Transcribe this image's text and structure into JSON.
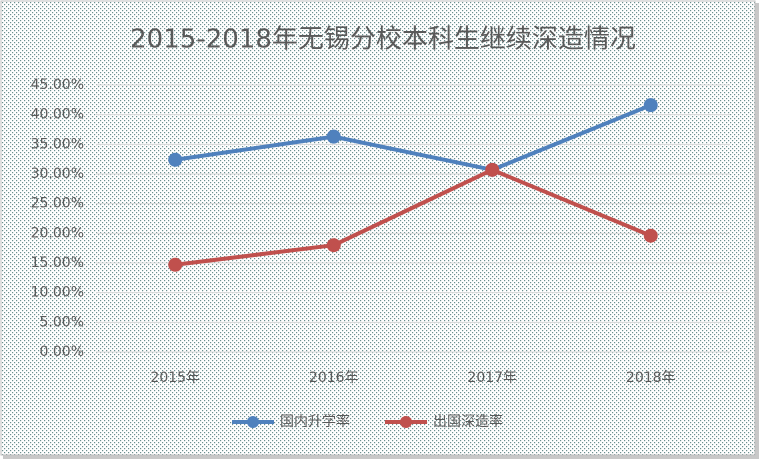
{
  "chart_data": {
    "type": "line",
    "title": "2015-2018年无锡分校本科生继续深造情况",
    "categories": [
      "2015年",
      "2016年",
      "2017年",
      "2018年"
    ],
    "series": [
      {
        "name": "国内升学率",
        "color": "#4f81bd",
        "values": [
          32.4,
          36.3,
          30.7,
          41.6
        ]
      },
      {
        "name": "出国深造率",
        "color": "#c0504d",
        "values": [
          14.7,
          18.0,
          30.7,
          19.6
        ]
      }
    ],
    "ylim": [
      0,
      45
    ],
    "yticks": [
      {
        "value": 0,
        "label": "0.00%"
      },
      {
        "value": 5,
        "label": "5.00%"
      },
      {
        "value": 10,
        "label": "10.00%"
      },
      {
        "value": 15,
        "label": "15.00%"
      },
      {
        "value": 20,
        "label": "20.00%"
      },
      {
        "value": 25,
        "label": "25.00%"
      },
      {
        "value": 30,
        "label": "30.00%"
      },
      {
        "value": 35,
        "label": "35.00%"
      },
      {
        "value": 40,
        "label": "40.00%"
      },
      {
        "value": 45,
        "label": "45.00%"
      }
    ],
    "grid": true,
    "legend": "bottom"
  }
}
